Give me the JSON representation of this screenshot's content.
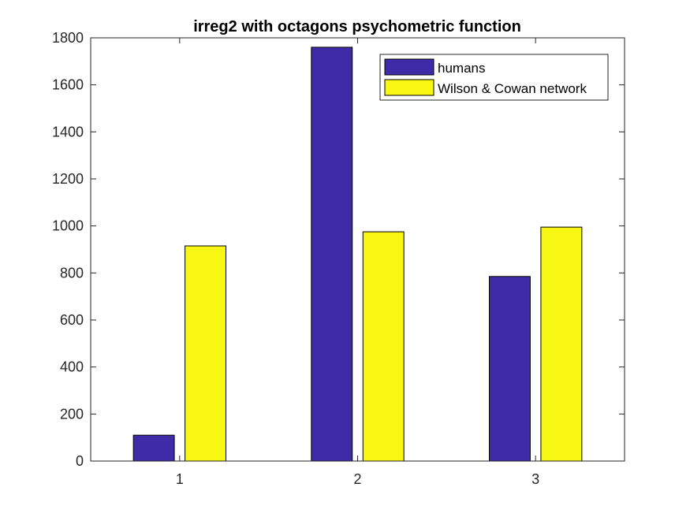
{
  "chart_data": {
    "type": "bar",
    "title": "irreg2 with octagons psychometric function",
    "xlabel": "",
    "ylabel": "",
    "categories": [
      "1",
      "2",
      "3"
    ],
    "series": [
      {
        "name": "humans",
        "values": [
          110,
          1760,
          785
        ],
        "color": "#3f2aa8"
      },
      {
        "name": "Wilson & Cowan network",
        "values": [
          915,
          975,
          995
        ],
        "color": "#f7f713"
      }
    ],
    "ylim": [
      0,
      1800
    ],
    "yticks": [
      0,
      200,
      400,
      600,
      800,
      1000,
      1200,
      1400,
      1600,
      1800
    ],
    "legend_position": "top-right",
    "grid": false
  }
}
